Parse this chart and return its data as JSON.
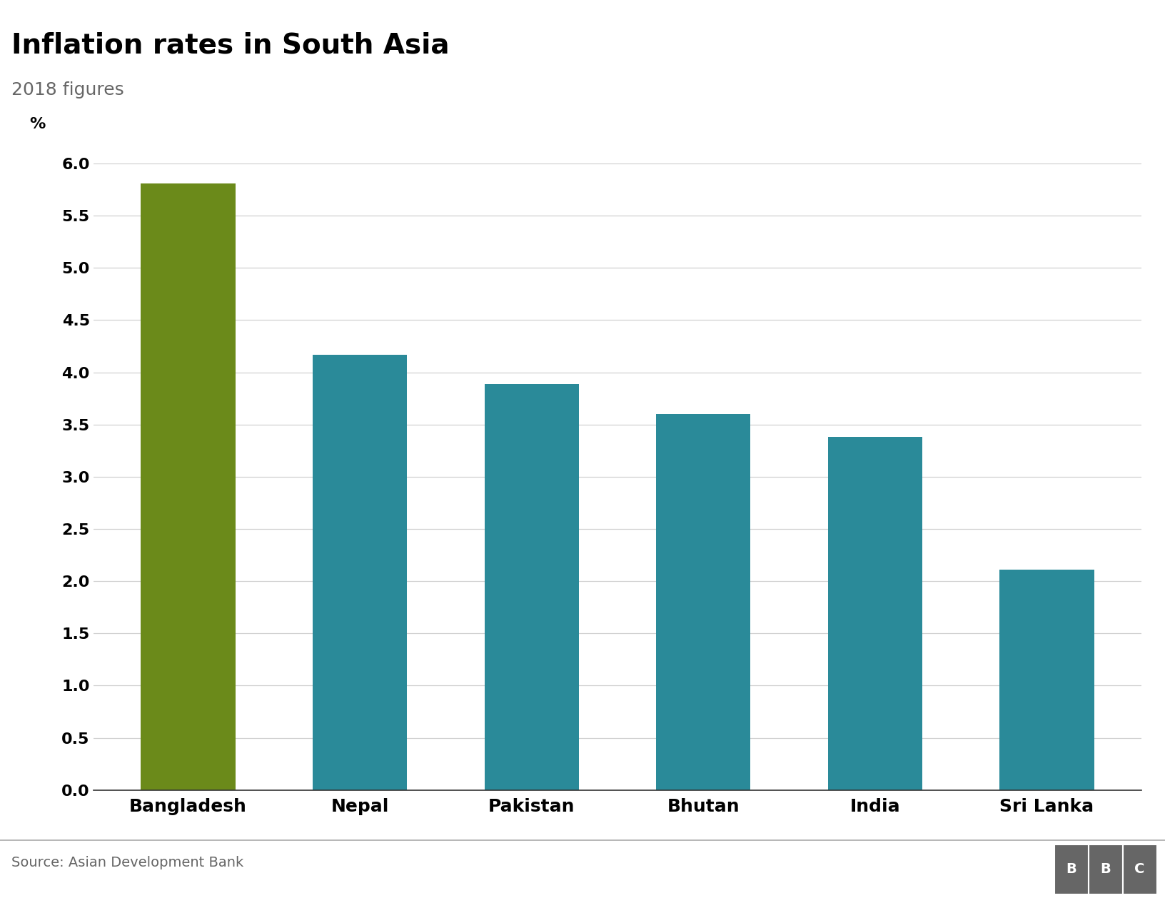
{
  "title": "Inflation rates in South Asia",
  "subtitle": "2018 figures",
  "ylabel": "%",
  "categories": [
    "Bangladesh",
    "Nepal",
    "Pakistan",
    "Bhutan",
    "India",
    "Sri Lanka"
  ],
  "values": [
    5.81,
    4.17,
    3.89,
    3.6,
    3.38,
    2.11
  ],
  "bar_colors": [
    "#6b8a1a",
    "#2a8a99",
    "#2a8a99",
    "#2a8a99",
    "#2a8a99",
    "#2a8a99"
  ],
  "ylim": [
    0,
    6.0
  ],
  "yticks": [
    0.0,
    0.5,
    1.0,
    1.5,
    2.0,
    2.5,
    3.0,
    3.5,
    4.0,
    4.5,
    5.0,
    5.5,
    6.0
  ],
  "source_text": "Source: Asian Development Bank",
  "background_color": "#ffffff",
  "grid_color": "#d0d0d0",
  "title_fontsize": 28,
  "subtitle_fontsize": 18,
  "tick_fontsize": 16,
  "xlabel_fontsize": 18,
  "source_fontsize": 14,
  "title_color": "#000000",
  "subtitle_color": "#666666",
  "source_color": "#666666",
  "xtick_color": "#000000",
  "ytick_color": "#000000",
  "bbc_box_color": "#666666"
}
